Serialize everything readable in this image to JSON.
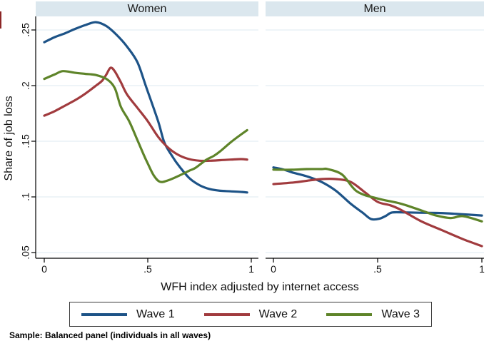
{
  "note": "Sample: Balanced panel (individuals in all waves)",
  "colors": {
    "wave1": "#1d5387",
    "wave2": "#a13b3e",
    "wave3": "#5e8429",
    "header_band": "#dbe7ee",
    "gridline": "#e8f1f5",
    "axis": "#000000"
  },
  "chart_data": {
    "type": "line",
    "xlabel": "WFH index adjusted by internet access",
    "ylabel": "Share of job loss",
    "xlim": [
      0,
      1
    ],
    "ylim": [
      0.05,
      0.25
    ],
    "x_ticks": [
      0,
      0.5,
      1
    ],
    "x_tick_labels": [
      "0",
      ".5",
      "1"
    ],
    "y_ticks": [
      0.05,
      0.1,
      0.15,
      0.2,
      0.25
    ],
    "y_tick_labels": [
      ".05",
      ".1",
      ".15",
      ".2",
      ".25"
    ],
    "grid": true,
    "legend_position": "bottom",
    "legend": [
      "Wave 1",
      "Wave 2",
      "Wave 3"
    ],
    "panels": [
      {
        "title": "Women",
        "series": [
          {
            "name": "Wave 1",
            "color": "#1d5387",
            "points": [
              [
                0,
                0.239
              ],
              [
                0.05,
                0.2435
              ],
              [
                0.1,
                0.247
              ],
              [
                0.15,
                0.251
              ],
              [
                0.2,
                0.2545
              ],
              [
                0.25,
                0.257
              ],
              [
                0.3,
                0.2535
              ],
              [
                0.35,
                0.2455
              ],
              [
                0.4,
                0.235
              ],
              [
                0.45,
                0.221
              ],
              [
                0.49,
                0.2
              ],
              [
                0.55,
                0.168
              ],
              [
                0.58,
                0.149
              ],
              [
                0.62,
                0.136
              ],
              [
                0.65,
                0.128
              ],
              [
                0.7,
                0.117
              ],
              [
                0.75,
                0.1105
              ],
              [
                0.8,
                0.107
              ],
              [
                0.85,
                0.1055
              ],
              [
                0.9,
                0.105
              ],
              [
                0.95,
                0.1045
              ],
              [
                0.98,
                0.104
              ]
            ]
          },
          {
            "name": "Wave 2",
            "color": "#a13b3e",
            "points": [
              [
                0,
                0.173
              ],
              [
                0.05,
                0.177
              ],
              [
                0.1,
                0.182
              ],
              [
                0.15,
                0.187
              ],
              [
                0.2,
                0.193
              ],
              [
                0.25,
                0.2
              ],
              [
                0.28,
                0.2045
              ],
              [
                0.3,
                0.21
              ],
              [
                0.32,
                0.216
              ],
              [
                0.34,
                0.213
              ],
              [
                0.37,
                0.203
              ],
              [
                0.4,
                0.192
              ],
              [
                0.45,
                0.18
              ],
              [
                0.5,
                0.168
              ],
              [
                0.55,
                0.154
              ],
              [
                0.6,
                0.144
              ],
              [
                0.65,
                0.1375
              ],
              [
                0.7,
                0.134
              ],
              [
                0.75,
                0.1325
              ],
              [
                0.8,
                0.1325
              ],
              [
                0.85,
                0.133
              ],
              [
                0.9,
                0.1335
              ],
              [
                0.95,
                0.134
              ],
              [
                0.98,
                0.1335
              ]
            ]
          },
          {
            "name": "Wave 3",
            "color": "#5e8429",
            "points": [
              [
                0,
                0.206
              ],
              [
                0.05,
                0.21
              ],
              [
                0.09,
                0.213
              ],
              [
                0.15,
                0.2115
              ],
              [
                0.2,
                0.2105
              ],
              [
                0.25,
                0.2095
              ],
              [
                0.3,
                0.206
              ],
              [
                0.34,
                0.198
              ],
              [
                0.37,
                0.181
              ],
              [
                0.41,
                0.168
              ],
              [
                0.45,
                0.151
              ],
              [
                0.48,
                0.138
              ],
              [
                0.5,
                0.13
              ],
              [
                0.53,
                0.119
              ],
              [
                0.56,
                0.1135
              ],
              [
                0.6,
                0.115
              ],
              [
                0.65,
                0.119
              ],
              [
                0.7,
                0.1235
              ],
              [
                0.73,
                0.126
              ],
              [
                0.78,
                0.133
              ],
              [
                0.82,
                0.137
              ],
              [
                0.85,
                0.141
              ],
              [
                0.9,
                0.149
              ],
              [
                0.95,
                0.156
              ],
              [
                0.98,
                0.16
              ]
            ]
          }
        ]
      },
      {
        "title": "Men",
        "series": [
          {
            "name": "Wave 1",
            "color": "#1d5387",
            "points": [
              [
                0,
                0.1265
              ],
              [
                0.05,
                0.1245
              ],
              [
                0.09,
                0.122
              ],
              [
                0.16,
                0.1185
              ],
              [
                0.23,
                0.1135
              ],
              [
                0.3,
                0.1055
              ],
              [
                0.37,
                0.094
              ],
              [
                0.43,
                0.0855
              ],
              [
                0.47,
                0.08
              ],
              [
                0.51,
                0.0805
              ],
              [
                0.54,
                0.083
              ],
              [
                0.57,
                0.086
              ],
              [
                0.64,
                0.086
              ],
              [
                0.7,
                0.0858
              ],
              [
                0.8,
                0.0855
              ],
              [
                0.9,
                0.0845
              ],
              [
                1,
                0.0833
              ]
            ]
          },
          {
            "name": "Wave 2",
            "color": "#a13b3e",
            "points": [
              [
                0,
                0.1115
              ],
              [
                0.1,
                0.113
              ],
              [
                0.16,
                0.1145
              ],
              [
                0.23,
                0.116
              ],
              [
                0.3,
                0.116
              ],
              [
                0.37,
                0.1135
              ],
              [
                0.44,
                0.104
              ],
              [
                0.5,
                0.0955
              ],
              [
                0.56,
                0.0925
              ],
              [
                0.61,
                0.0885
              ],
              [
                0.71,
                0.078
              ],
              [
                0.81,
                0.07
              ],
              [
                0.91,
                0.062
              ],
              [
                1,
                0.0558
              ]
            ]
          },
          {
            "name": "Wave 3",
            "color": "#5e8429",
            "points": [
              [
                0,
                0.1245
              ],
              [
                0.09,
                0.1244
              ],
              [
                0.16,
                0.125
              ],
              [
                0.23,
                0.125
              ],
              [
                0.26,
                0.125
              ],
              [
                0.33,
                0.12
              ],
              [
                0.4,
                0.105
              ],
              [
                0.5,
                0.0985
              ],
              [
                0.61,
                0.094
              ],
              [
                0.71,
                0.0878
              ],
              [
                0.78,
                0.0833
              ],
              [
                0.85,
                0.081
              ],
              [
                0.91,
                0.0827
              ],
              [
                1,
                0.078
              ]
            ]
          }
        ]
      }
    ]
  }
}
